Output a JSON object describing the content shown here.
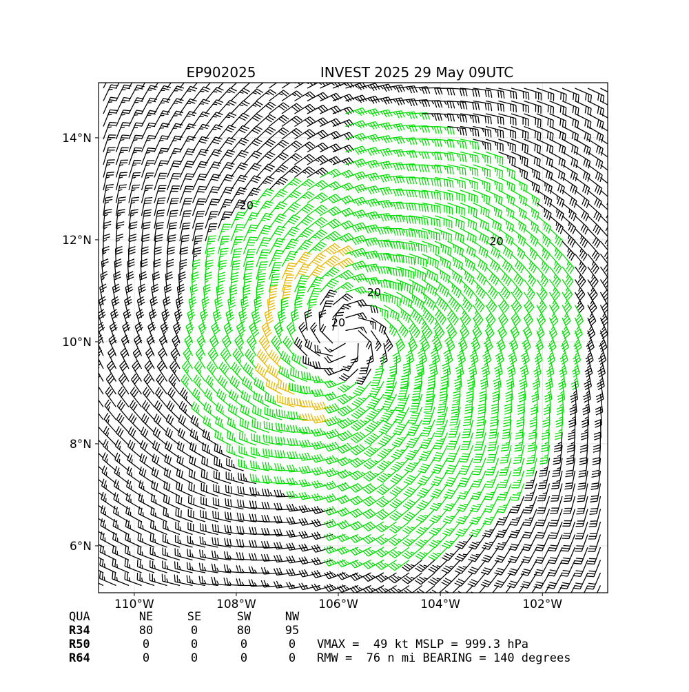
{
  "title_left": "EP902025",
  "title_right": "INVEST 2025 29 May 09UTC",
  "axes": {
    "xlim": [
      -110.7,
      -100.72
    ],
    "xticks": [
      {
        "value": -110,
        "label": "110°W"
      },
      {
        "value": -108,
        "label": "108°W"
      },
      {
        "value": -106,
        "label": "106°W"
      },
      {
        "value": -104,
        "label": "104°W"
      },
      {
        "value": -102,
        "label": "102°W"
      }
    ],
    "ylim": [
      5.08,
      15.08
    ],
    "yticks": [
      {
        "value": 6,
        "label": "6°N"
      },
      {
        "value": 8,
        "label": "8°N"
      },
      {
        "value": 10,
        "label": "10°N"
      },
      {
        "value": 12,
        "label": "12°N"
      },
      {
        "value": 14,
        "label": "14°N"
      }
    ],
    "grid": true
  },
  "contour_labels": [
    {
      "text": "20",
      "lon": -107.8,
      "lat": 12.6
    },
    {
      "text": "20",
      "lon": -102.9,
      "lat": 11.9
    },
    {
      "text": "20",
      "lon": -105.3,
      "lat": 10.9
    },
    {
      "text": "20",
      "lon": -106.0,
      "lat": 10.3
    }
  ],
  "table": {
    "header": [
      "QUA",
      "NE",
      "SE",
      "SW",
      "NW"
    ],
    "rows": [
      [
        "R34",
        "80",
        "0",
        "80",
        "95"
      ],
      [
        "R50",
        "0",
        "0",
        "0",
        "0"
      ],
      [
        "R64",
        "0",
        "0",
        "0",
        "0"
      ]
    ]
  },
  "stats": [
    "VMAX =  49 kt MSLP = 999.3 hPa",
    "RMW =  76 n mi BEARING = 140 degrees"
  ]
}
